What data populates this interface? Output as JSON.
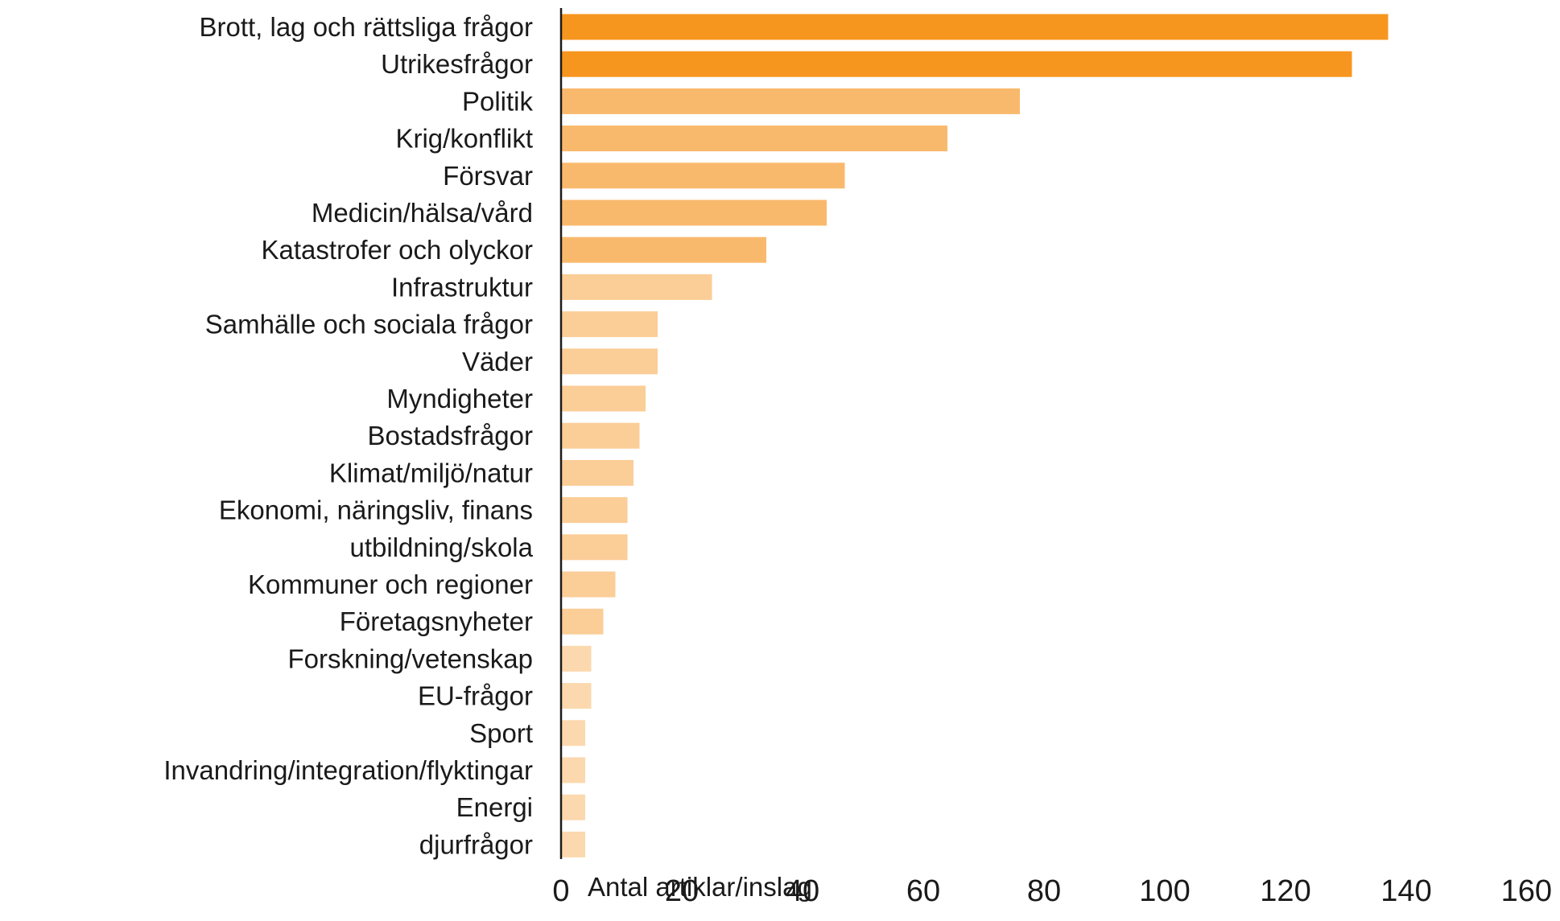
{
  "chart_data": {
    "type": "bar",
    "orientation": "horizontal",
    "title": "",
    "xlabel": "Antal artiklar/inslag",
    "ylabel": "",
    "xlim": [
      0,
      160
    ],
    "xticks": [
      0,
      20,
      40,
      60,
      80,
      100,
      120,
      140,
      160
    ],
    "grid": false,
    "legend": "none",
    "categories": [
      "Brott, lag och rättsliga frågor",
      "Utrikesfrågor",
      "Politik",
      "Krig/konflikt",
      "Försvar",
      "Medicin/hälsa/vård",
      "Katastrofer och olyckor",
      "Infrastruktur",
      "Samhälle och sociala frågor",
      "Väder",
      "Myndigheter",
      "Bostadsfrågor",
      "Klimat/miljö/natur",
      "Ekonomi, näringsliv, finans",
      "utbildning/skola",
      "Kommuner och regioner",
      "Företagsnyheter",
      "Forskning/vetenskap",
      "EU-frågor",
      "Sport",
      "Invandring/integration/flyktingar",
      "Energi",
      "djurfrågor"
    ],
    "values": [
      137,
      131,
      76,
      64,
      47,
      44,
      34,
      25,
      16,
      16,
      14,
      13,
      12,
      11,
      11,
      9,
      7,
      5,
      5,
      4,
      4,
      4,
      4
    ],
    "colors": [
      "#f7961e",
      "#f7961e",
      "#f9b96c",
      "#f9b96c",
      "#f9b96c",
      "#f9b96c",
      "#f9b96c",
      "#fbcd97",
      "#fbcd97",
      "#fbcd97",
      "#fbcd97",
      "#fbcd97",
      "#fbcd97",
      "#fbcd97",
      "#fbcd97",
      "#fbcd97",
      "#fbcd97",
      "#fcd8ae",
      "#fcd8ae",
      "#fcd8ae",
      "#fcd8ae",
      "#fcd8ae",
      "#fcd8ae"
    ],
    "axis_color": "#1a1a1a"
  }
}
